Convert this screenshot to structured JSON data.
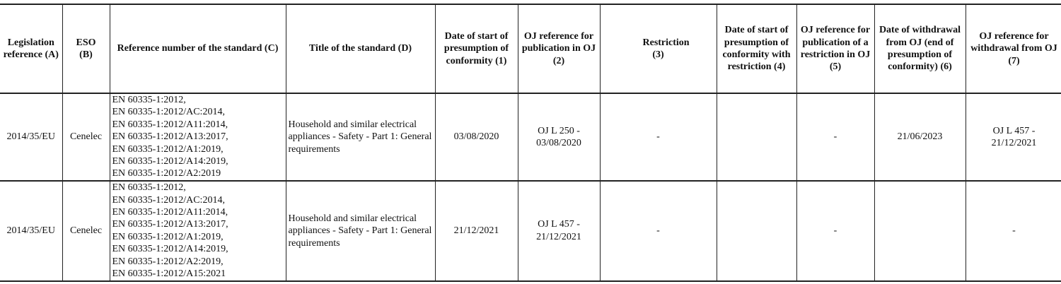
{
  "headers": [
    "Legislation reference (A)",
    "ESO (B)",
    "Reference number of the standard (C)",
    "Title of the standard (D)",
    "Date of start of presumption of conformity (1)",
    "OJ reference for publication in OJ (2)",
    "Restriction (3)",
    "Date of start of presumption of conformity with restriction (4)",
    "OJ reference for publication of a restriction in OJ (5)",
    "Date of withdrawal from OJ (end of presumption of conformity) (6)",
    "OJ reference for withdrawal from OJ (7)"
  ],
  "rows": [
    {
      "legislation": "2014/35/EU",
      "eso": "Cenelec",
      "references": [
        "EN 60335-1:2012,",
        "EN 60335-1:2012/AC:2014,",
        "EN 60335-1:2012/A11:2014,",
        "EN 60335-1:2012/A13:2017,",
        "EN 60335-1:2012/A1:2019,",
        "EN 60335-1:2012/A14:2019,",
        "EN 60335-1:2012/A2:2019"
      ],
      "title": "Household and similar electrical appliances - Safety - Part 1: General requirements",
      "start_date": "03/08/2020",
      "oj_publication": "OJ L 250 - 03/08/2020",
      "restriction": "-",
      "start_with_restriction": "",
      "oj_restriction": "-",
      "withdrawal_date": "21/06/2023",
      "oj_withdrawal": "OJ L 457 - 21/12/2021"
    },
    {
      "legislation": "2014/35/EU",
      "eso": "Cenelec",
      "references": [
        "EN 60335-1:2012,",
        "EN 60335-1:2012/AC:2014,",
        "EN 60335-1:2012/A11:2014,",
        "EN 60335-1:2012/A13:2017,",
        "EN 60335-1:2012/A1:2019,",
        "EN 60335-1:2012/A14:2019,",
        "EN 60335-1:2012/A2:2019,",
        "EN 60335-1:2012/A15:2021"
      ],
      "title": "Household and similar electrical appliances - Safety - Part 1: General requirements",
      "start_date": "21/12/2021",
      "oj_publication": "OJ L 457 - 21/12/2021",
      "restriction": "-",
      "start_with_restriction": "",
      "oj_restriction": "-",
      "withdrawal_date": "",
      "oj_withdrawal": "-"
    }
  ]
}
